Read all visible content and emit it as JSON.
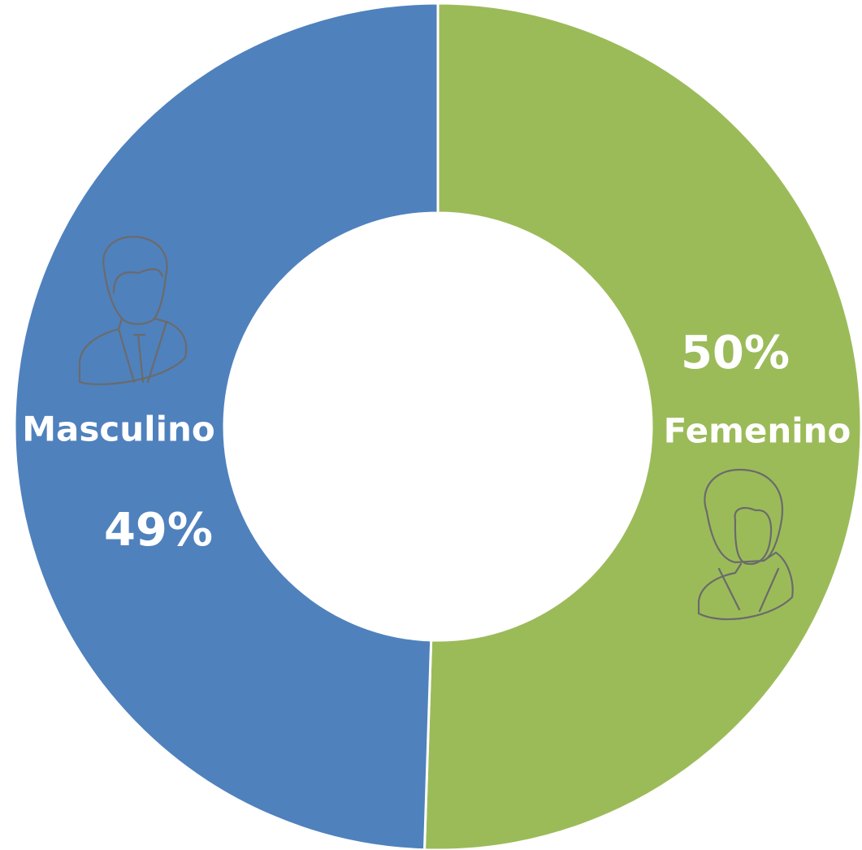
{
  "chart_data": {
    "type": "donut",
    "categories": [
      "Femenino",
      "Masculino"
    ],
    "values": [
      50,
      49
    ],
    "value_labels": [
      "50%",
      "49%"
    ],
    "colors": [
      "#9bbb59",
      "#4f81bd"
    ]
  }
}
